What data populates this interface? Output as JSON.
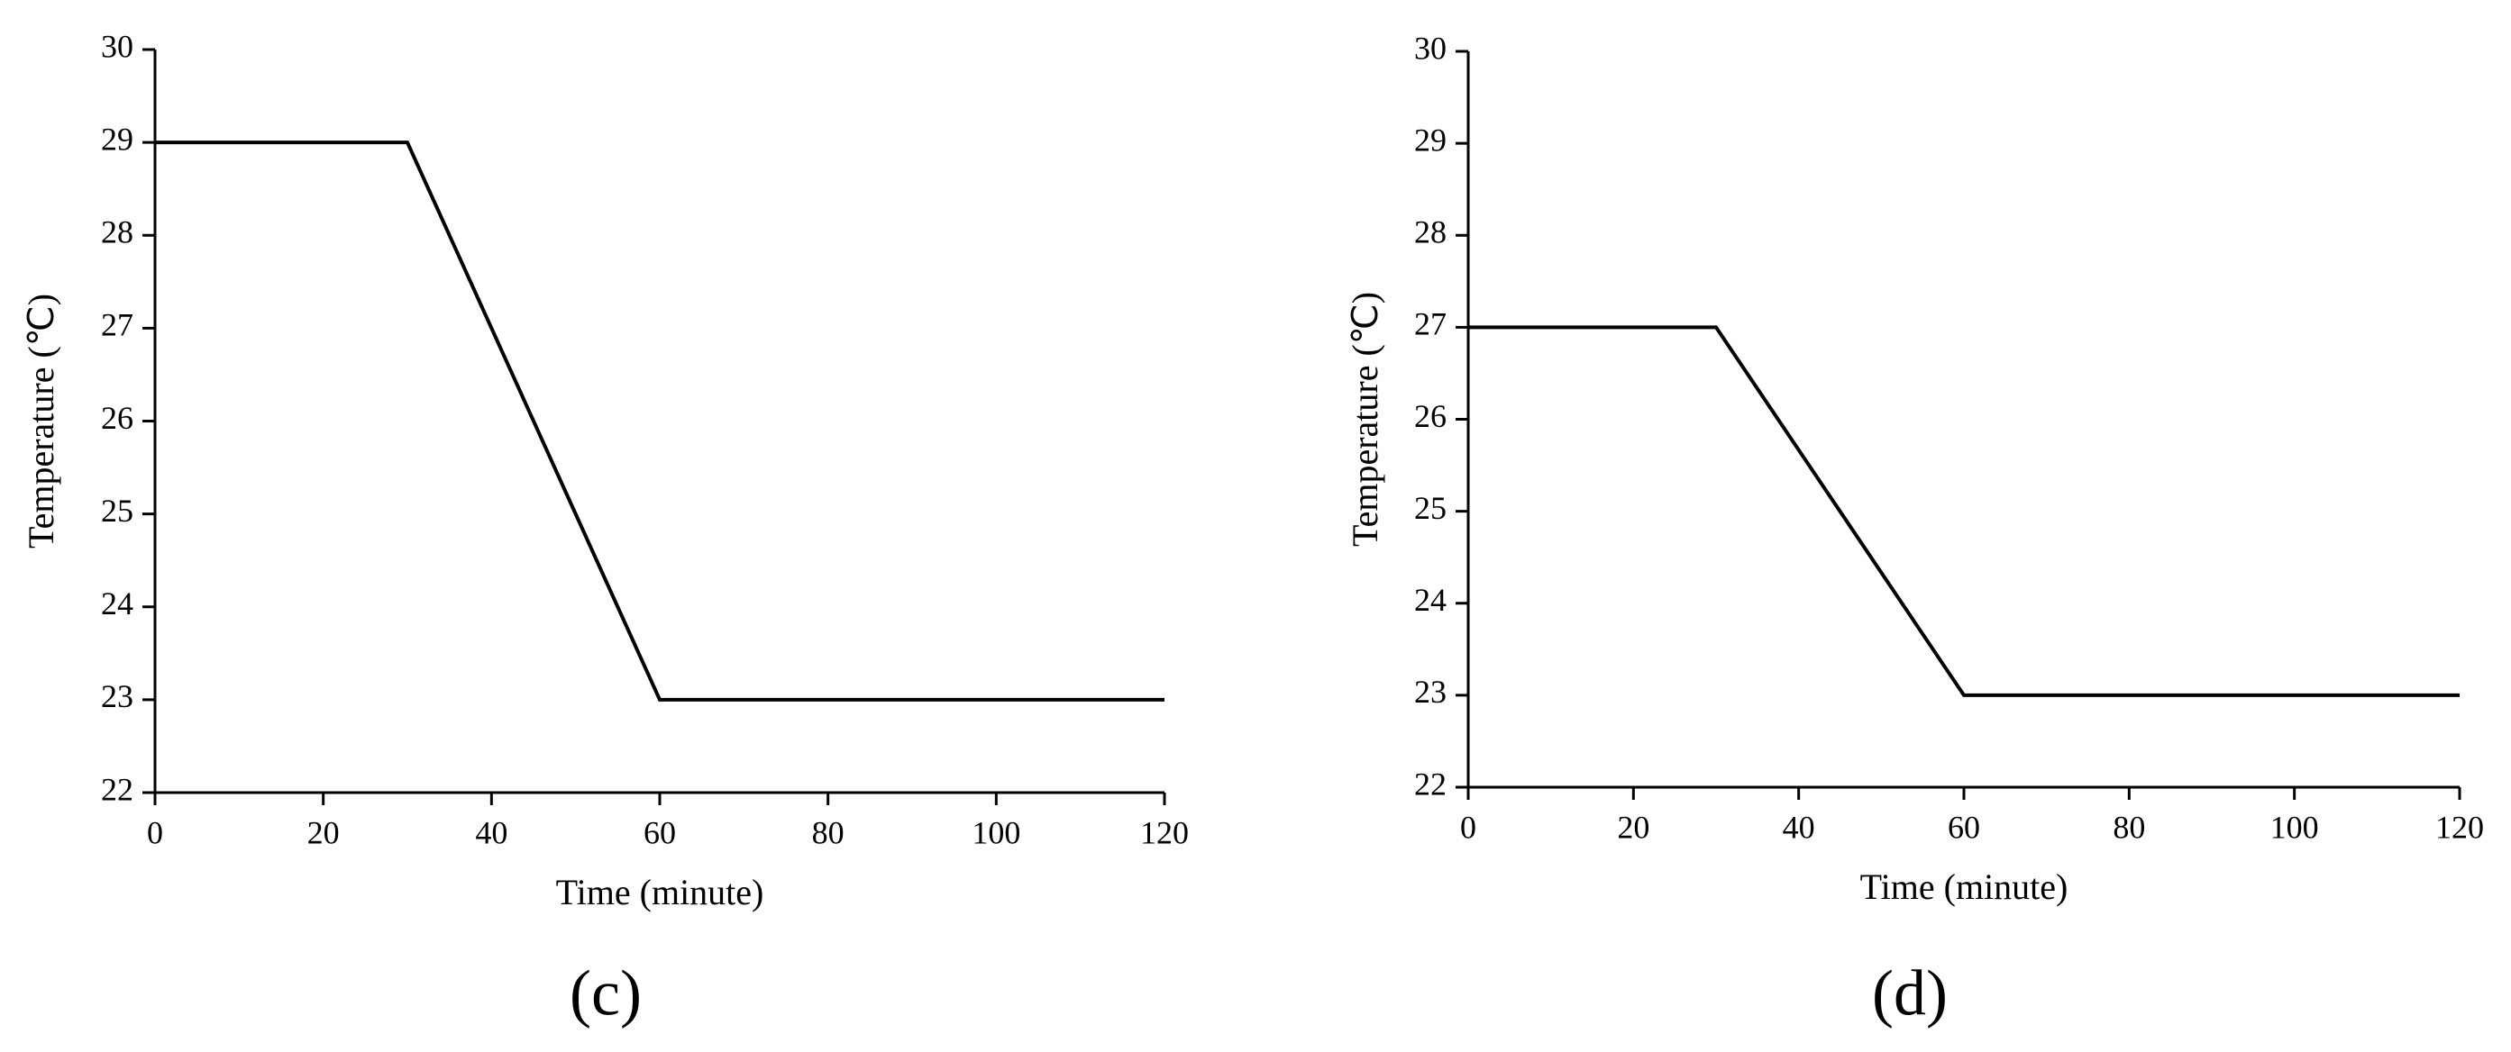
{
  "chart_data": [
    {
      "type": "line",
      "panel_label": "(c)",
      "x_label": "Time (minute)",
      "y_label": "Temperature (℃)",
      "x": [
        0,
        30,
        60,
        120
      ],
      "series": [
        {
          "color": "#000000",
          "values": [
            29,
            29,
            23,
            23
          ]
        }
      ],
      "xlim": [
        0,
        120
      ],
      "xticks": [
        0,
        20,
        40,
        60,
        80,
        100,
        120
      ],
      "ylim": [
        22,
        30
      ],
      "yticks": [
        22,
        23,
        24,
        25,
        26,
        27,
        28,
        29,
        30
      ],
      "grid": false
    },
    {
      "type": "line",
      "panel_label": "(d)",
      "x_label": "Time (minute)",
      "y_label": "Temperature (℃)",
      "x": [
        0,
        30,
        60,
        120
      ],
      "series": [
        {
          "color": "#000000",
          "values": [
            27,
            27,
            23,
            23
          ]
        }
      ],
      "xlim": [
        0,
        120
      ],
      "xticks": [
        0,
        20,
        40,
        60,
        80,
        100,
        120
      ],
      "ylim": [
        22,
        30
      ],
      "yticks": [
        22,
        23,
        24,
        25,
        26,
        27,
        28,
        29,
        30
      ],
      "grid": false
    }
  ]
}
